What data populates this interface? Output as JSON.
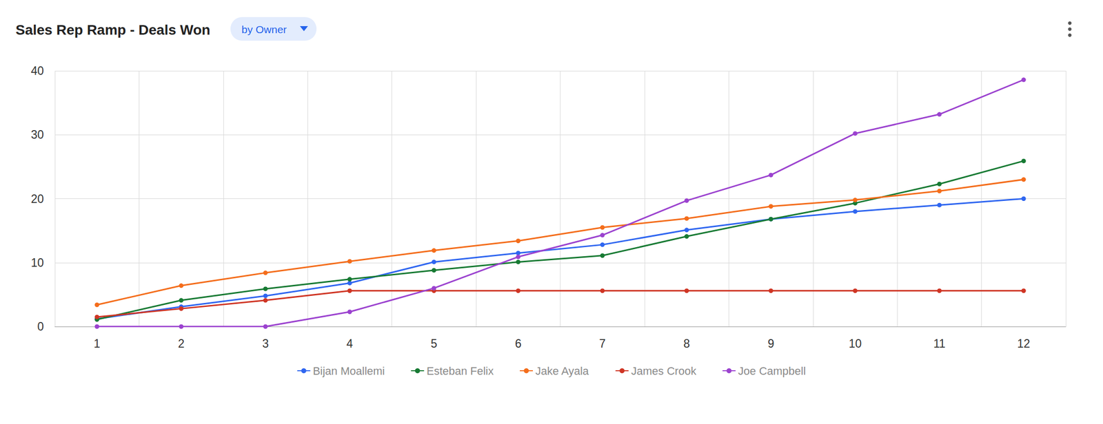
{
  "chart_data": {
    "type": "line",
    "title": "Sales Rep Ramp - Deals Won",
    "subtitle": "by Owner",
    "categories": [
      "1",
      "2",
      "3",
      "4",
      "5",
      "6",
      "7",
      "8",
      "9",
      "10",
      "11",
      "12"
    ],
    "series": [
      {
        "name": "Bijan Moallemi",
        "color": "#2f66f0",
        "values": [
          1.2,
          3.1,
          4.8,
          6.8,
          10.1,
          11.5,
          12.8,
          15.1,
          16.8,
          18.0,
          19.0,
          20.0
        ]
      },
      {
        "name": "Esteban Felix",
        "color": "#177a33",
        "values": [
          1.1,
          4.1,
          5.9,
          7.4,
          8.8,
          10.1,
          11.1,
          14.1,
          16.8,
          19.3,
          22.3,
          25.9
        ]
      },
      {
        "name": "Jake Ayala",
        "color": "#f46d1b",
        "values": [
          3.4,
          6.4,
          8.4,
          10.2,
          11.9,
          13.4,
          15.5,
          16.9,
          18.8,
          19.8,
          21.2,
          23.0
        ]
      },
      {
        "name": "James Crook",
        "color": "#cf3524",
        "values": [
          1.5,
          2.8,
          4.1,
          5.6,
          5.6,
          5.6,
          5.6,
          5.6,
          5.6,
          5.6,
          5.6,
          5.6
        ]
      },
      {
        "name": "Joe Campbell",
        "color": "#9b42cf",
        "values": [
          0,
          0,
          0,
          2.3,
          6.0,
          10.9,
          14.3,
          19.7,
          23.7,
          30.2,
          33.2,
          38.6
        ]
      }
    ],
    "ylim": [
      0,
      40
    ],
    "yticks": [
      0,
      10,
      20,
      30,
      40
    ],
    "grid": true,
    "legend": "bottom",
    "marker": "circle"
  }
}
